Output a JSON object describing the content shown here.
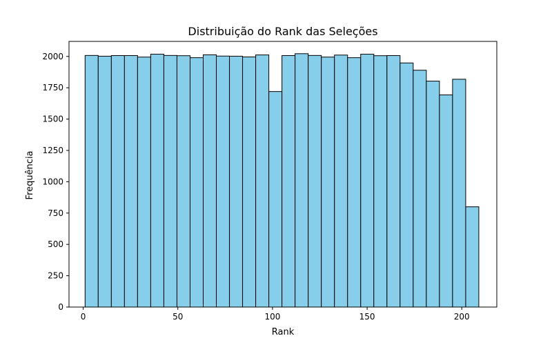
{
  "chart_data": {
    "type": "bar",
    "title": "Distribuição do Rank das Seleções",
    "xlabel": "Rank",
    "ylabel": "Frequência",
    "xlim": [
      -7.5,
      218.5
    ],
    "ylim": [
      0,
      2120
    ],
    "bin_start": 1,
    "bin_end": 209,
    "bins": [
      {
        "x0": 1.0,
        "x1": 7.93,
        "count": 2008
      },
      {
        "x0": 7.93,
        "x1": 14.87,
        "count": 2002
      },
      {
        "x0": 14.87,
        "x1": 21.8,
        "count": 2007
      },
      {
        "x0": 21.8,
        "x1": 28.73,
        "count": 2007
      },
      {
        "x0": 28.73,
        "x1": 35.67,
        "count": 1995
      },
      {
        "x0": 35.67,
        "x1": 42.6,
        "count": 2018
      },
      {
        "x0": 42.6,
        "x1": 49.53,
        "count": 2008
      },
      {
        "x0": 49.53,
        "x1": 56.47,
        "count": 2006
      },
      {
        "x0": 56.47,
        "x1": 63.4,
        "count": 1990
      },
      {
        "x0": 63.4,
        "x1": 70.33,
        "count": 2013
      },
      {
        "x0": 70.33,
        "x1": 77.27,
        "count": 2003
      },
      {
        "x0": 77.27,
        "x1": 84.2,
        "count": 2002
      },
      {
        "x0": 84.2,
        "x1": 91.13,
        "count": 1996
      },
      {
        "x0": 91.13,
        "x1": 98.07,
        "count": 2012
      },
      {
        "x0": 98.07,
        "x1": 105.0,
        "count": 1720
      },
      {
        "x0": 105.0,
        "x1": 111.93,
        "count": 2007
      },
      {
        "x0": 111.93,
        "x1": 118.87,
        "count": 2022
      },
      {
        "x0": 118.87,
        "x1": 125.8,
        "count": 2008
      },
      {
        "x0": 125.8,
        "x1": 132.73,
        "count": 1995
      },
      {
        "x0": 132.73,
        "x1": 139.67,
        "count": 2011
      },
      {
        "x0": 139.67,
        "x1": 146.6,
        "count": 1990
      },
      {
        "x0": 146.6,
        "x1": 153.53,
        "count": 2018
      },
      {
        "x0": 153.53,
        "x1": 160.47,
        "count": 2006
      },
      {
        "x0": 160.47,
        "x1": 167.4,
        "count": 2007
      },
      {
        "x0": 167.4,
        "x1": 174.33,
        "count": 1948
      },
      {
        "x0": 174.33,
        "x1": 181.27,
        "count": 1890
      },
      {
        "x0": 181.27,
        "x1": 188.2,
        "count": 1803
      },
      {
        "x0": 188.2,
        "x1": 195.13,
        "count": 1693
      },
      {
        "x0": 195.13,
        "x1": 202.07,
        "count": 1818
      },
      {
        "x0": 202.07,
        "x1": 209.0,
        "count": 800
      }
    ],
    "xticks": [
      0,
      50,
      100,
      150,
      200
    ],
    "yticks": [
      0,
      250,
      500,
      750,
      1000,
      1250,
      1500,
      1750,
      2000
    ],
    "bar_color": "#87ceeb",
    "edge_color": "#000000",
    "grid": false,
    "legend": "none"
  }
}
